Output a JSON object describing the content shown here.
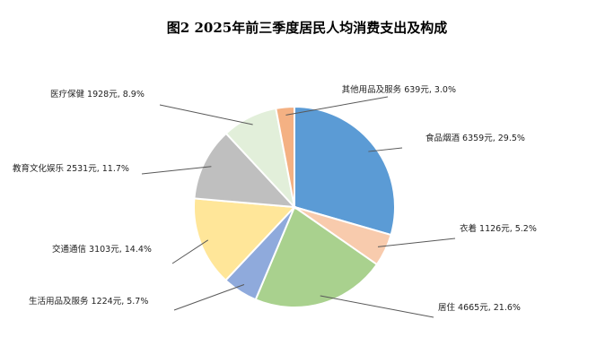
{
  "chart_data": {
    "type": "pie",
    "title": "图2   2025年前三季度居民人均消费支出及构成",
    "slices": [
      {
        "name": "食品烟酒",
        "value": 6359,
        "percent": 29.5,
        "color": "#5b9bd5",
        "label": "食品烟酒 6359元, 29.5%"
      },
      {
        "name": "衣着",
        "value": 1126,
        "percent": 5.2,
        "color": "#f8cbad",
        "label": "衣着 1126元, 5.2%"
      },
      {
        "name": "居住",
        "value": 4665,
        "percent": 21.6,
        "color": "#a9d18e",
        "label": "居住 4665元, 21.6%"
      },
      {
        "name": "生活用品及服务",
        "value": 1224,
        "percent": 5.7,
        "color": "#8faadc",
        "label": "生活用品及服务 1224元, 5.7%"
      },
      {
        "name": "交通通信",
        "value": 3103,
        "percent": 14.4,
        "color": "#ffe699",
        "label": "交通通信 3103元, 14.4%"
      },
      {
        "name": "教育文化娱乐",
        "value": 2531,
        "percent": 11.7,
        "color": "#bfbfbf",
        "label": "教育文化娱乐 2531元, 11.7%"
      },
      {
        "name": "医疗保健",
        "value": 1928,
        "percent": 8.9,
        "color": "#e2efda",
        "label": "医疗保健 1928元, 8.9%"
      },
      {
        "name": "其他用品及服务",
        "value": 639,
        "percent": 3.0,
        "color": "#f4b183",
        "label": "其他用品及服务 639元, 3.0%"
      }
    ]
  }
}
